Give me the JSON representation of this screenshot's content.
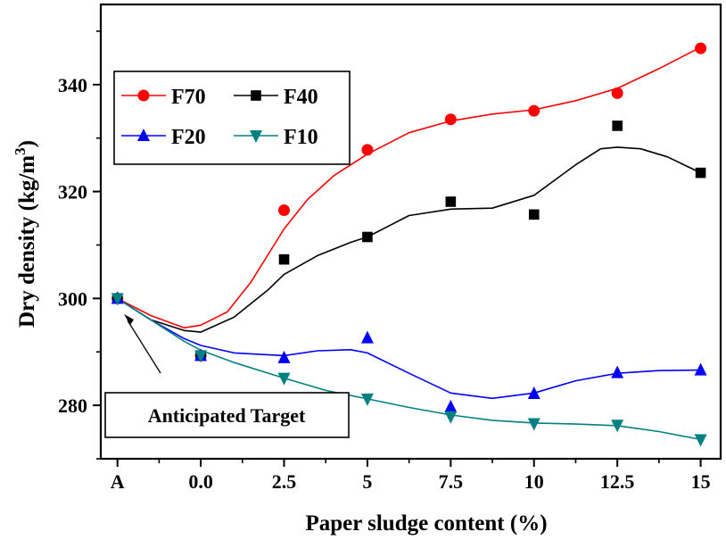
{
  "chart_data": {
    "type": "line",
    "xlabel": "Paper sludge content (%)",
    "ylabel": "Dry density (kg/m",
    "ylabel_sup": "3",
    "ylabel_close": ")",
    "x_tick_labels": [
      "A",
      "0.0",
      "2.5",
      "5",
      "7.5",
      "10",
      "12.5",
      "15"
    ],
    "y_ticks": [
      280,
      300,
      320,
      340
    ],
    "ylim": [
      270,
      355
    ],
    "x_positions": [
      -2.5,
      0,
      2.5,
      5,
      7.5,
      10,
      12.5,
      15
    ],
    "xlim": [
      -3.0,
      15.6
    ],
    "series": [
      {
        "name": "F70",
        "color": "#ff0000",
        "marker": "circle",
        "values": [
          300.0,
          289.3,
          316.5,
          327.8,
          333.5,
          335.1,
          338.4,
          346.8
        ],
        "curve": [
          [
            -2.5,
            300
          ],
          [
            -1.5,
            296.8
          ],
          [
            -0.5,
            294.5
          ],
          [
            0,
            295.0
          ],
          [
            0.8,
            297.5
          ],
          [
            1.5,
            303
          ],
          [
            2.2,
            310
          ],
          [
            2.5,
            313
          ],
          [
            3.2,
            318.5
          ],
          [
            4,
            323
          ],
          [
            5,
            327
          ],
          [
            6.25,
            331
          ],
          [
            7.5,
            333.2
          ],
          [
            8.75,
            334.5
          ],
          [
            10,
            335.3
          ],
          [
            11.25,
            337
          ],
          [
            12.5,
            339.3
          ],
          [
            13.75,
            343
          ],
          [
            15,
            347
          ]
        ]
      },
      {
        "name": "F40",
        "color": "#000000",
        "marker": "square",
        "values": [
          300.0,
          289.3,
          307.3,
          311.5,
          318.1,
          315.7,
          332.3,
          323.5
        ],
        "curve": [
          [
            -2.5,
            300
          ],
          [
            -1.5,
            296
          ],
          [
            -0.5,
            294
          ],
          [
            0,
            293.7
          ],
          [
            1,
            296.5
          ],
          [
            2,
            301.5
          ],
          [
            2.5,
            304.5
          ],
          [
            3.5,
            308
          ],
          [
            4.5,
            310.5
          ],
          [
            5,
            311.5
          ],
          [
            6.25,
            315.5
          ],
          [
            7.5,
            316.7
          ],
          [
            8.75,
            316.9
          ],
          [
            10,
            319.3
          ],
          [
            11.25,
            325
          ],
          [
            12,
            328
          ],
          [
            12.5,
            328.3
          ],
          [
            13.2,
            328
          ],
          [
            14,
            326.5
          ],
          [
            15,
            323.5
          ]
        ]
      },
      {
        "name": "F20",
        "color": "#0000ff",
        "marker": "triangle-up",
        "values": [
          300.0,
          289.3,
          288.9,
          292.6,
          279.7,
          282.2,
          286.1,
          286.6
        ],
        "curve": [
          [
            -2.5,
            300
          ],
          [
            -1.5,
            296
          ],
          [
            -0.5,
            292.5
          ],
          [
            0,
            291.2
          ],
          [
            1,
            289.8
          ],
          [
            2.5,
            289.3
          ],
          [
            3.5,
            290.2
          ],
          [
            4.5,
            290.4
          ],
          [
            5,
            289.8
          ],
          [
            6.25,
            286
          ],
          [
            7.5,
            282.3
          ],
          [
            8.75,
            281.3
          ],
          [
            10,
            282.3
          ],
          [
            11.25,
            284.6
          ],
          [
            12.5,
            286.0
          ],
          [
            13.75,
            286.5
          ],
          [
            15,
            286.6
          ]
        ]
      },
      {
        "name": "F10",
        "color": "#008080",
        "marker": "triangle-down",
        "values": [
          300.0,
          289.3,
          285.1,
          281.2,
          277.9,
          276.6,
          276.3,
          273.6
        ],
        "curve": [
          [
            -2.5,
            300
          ],
          [
            -1.5,
            296
          ],
          [
            -0.5,
            292
          ],
          [
            0,
            290.3
          ],
          [
            1,
            288
          ],
          [
            2.5,
            285.1
          ],
          [
            3.75,
            282.8
          ],
          [
            5,
            281.2
          ],
          [
            6.25,
            279.6
          ],
          [
            7.5,
            278.2
          ],
          [
            8.75,
            277.2
          ],
          [
            10,
            276.7
          ],
          [
            11.25,
            276.5
          ],
          [
            12.5,
            276.2
          ],
          [
            13.75,
            275.1
          ],
          [
            15,
            273.6
          ]
        ]
      }
    ],
    "legend_position": "top-left",
    "grid": false,
    "annotation": "Anticipated Target"
  }
}
